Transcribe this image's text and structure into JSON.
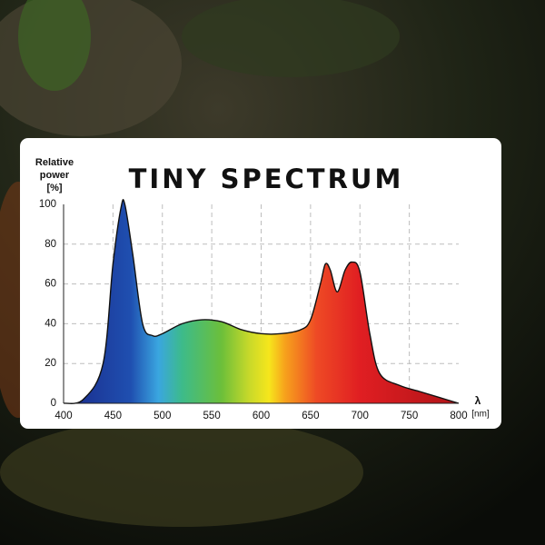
{
  "chart_data": {
    "type": "area",
    "title": "TINY SPECTRUM",
    "y_label": [
      "Relative",
      "power",
      "[%]"
    ],
    "x_label": [
      "λ",
      "[nm]"
    ],
    "x": [
      400,
      420,
      440,
      450,
      458,
      462,
      470,
      480,
      490,
      500,
      520,
      540,
      560,
      580,
      600,
      620,
      640,
      650,
      660,
      665,
      670,
      677,
      685,
      692,
      700,
      710,
      720,
      740,
      760,
      780,
      800
    ],
    "values": [
      0,
      2,
      20,
      70,
      98,
      100,
      75,
      40,
      34,
      35,
      40,
      42,
      41,
      37,
      35,
      35,
      37,
      42,
      60,
      70,
      67,
      56,
      67,
      71,
      66,
      35,
      15,
      9,
      6,
      3,
      0
    ],
    "xlim": [
      400,
      800
    ],
    "xticks": [
      400,
      450,
      500,
      550,
      600,
      650,
      700,
      750,
      800
    ],
    "ylim": [
      0,
      100
    ],
    "yticks": [
      0,
      20,
      40,
      60,
      80,
      100
    ],
    "grid": true,
    "line_color": "#111111"
  }
}
